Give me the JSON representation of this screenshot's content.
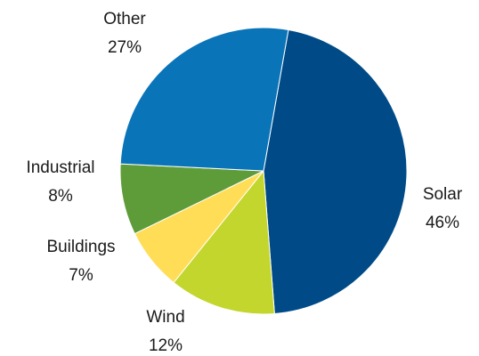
{
  "chart_data": {
    "type": "pie",
    "title": "",
    "legend": "none",
    "categories": [
      "Solar",
      "Wind",
      "Buildings",
      "Industrial",
      "Other"
    ],
    "values": [
      46,
      12,
      7,
      8,
      27
    ],
    "labels": [
      {
        "name": "Solar",
        "value": "46%"
      },
      {
        "name": "Wind",
        "value": "12%"
      },
      {
        "name": "Buildings",
        "value": "7%"
      },
      {
        "name": "Industrial",
        "value": "8%"
      },
      {
        "name": "Other",
        "value": "27%"
      }
    ],
    "colors": [
      "#004b87",
      "#c3d62d",
      "#ffdd57",
      "#5e9c3a",
      "#0a74b9"
    ],
    "start_angle_deg": 10,
    "direction": "clockwise"
  }
}
